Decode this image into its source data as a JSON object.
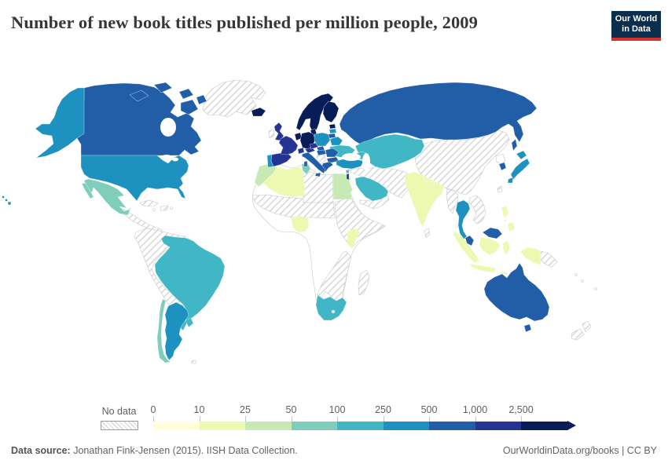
{
  "header": {
    "title": "Number of new book titles published per million people, 2009"
  },
  "logo": {
    "line1": "Our World",
    "line2": "in Data",
    "bg_color": "#0c2e4e",
    "accent_color": "#ce352c"
  },
  "legend": {
    "no_data_label": "No data"
  },
  "footer": {
    "source_label": "Data source:",
    "source_text": " Jonathan Fink-Jensen (2015). IISH Data Collection.",
    "credit_text": "OurWorldinData.org/books | CC BY"
  },
  "chart_data": {
    "type": "heatmap",
    "subtype": "choropleth-world-map",
    "title": "Number of new book titles published per million people, 2009",
    "legend_ticks": [
      "0",
      "10",
      "25",
      "50",
      "100",
      "250",
      "500",
      "1,000",
      "2,500"
    ],
    "bins": [
      {
        "range": "0-10",
        "color": "#ffffd9"
      },
      {
        "range": "10-25",
        "color": "#edf8b1"
      },
      {
        "range": "25-50",
        "color": "#c7e9b4"
      },
      {
        "range": "50-100",
        "color": "#7fcdbb"
      },
      {
        "range": "100-250",
        "color": "#41b6c4"
      },
      {
        "range": "250-500",
        "color": "#1d91c0"
      },
      {
        "range": "500-1,000",
        "color": "#225ea8"
      },
      {
        "range": "1,000-2,500",
        "color": "#253494"
      },
      {
        "range": "2,500+",
        "color": "#081d58"
      }
    ],
    "no_data_style": "hatched",
    "regions": {
      "iceland": "2,500+",
      "scandinavia": "2,500+",
      "finland": "2,500+",
      "denmark": "2,500+",
      "germany": "2,500+",
      "benelux": "2,500+",
      "estonia": "2,500+",
      "uk": "1,000-2,500",
      "spain": "1,000-2,500",
      "france": "1,000-2,500",
      "switzerland": "1,000-2,500",
      "austria": "1,000-2,500",
      "czechia": "1,000-2,500",
      "israel": "1,000-2,500",
      "canada": "500-1,000",
      "russia": "500-1,000",
      "australia": "500-1,000",
      "italy": "500-1,000",
      "greece": "500-1,000",
      "bulgaria": "500-1,000",
      "romania": "500-1,000",
      "hungary": "500-1,000",
      "slovakia": "500-1,000",
      "lithuania": "500-1,000",
      "south-korea": "500-1,000",
      "malaysia": "500-1,000",
      "usa": "250-500",
      "alaska": "250-500",
      "hawaii": "250-500",
      "japan": "250-500",
      "argentina": "250-500",
      "thailand": "250-500",
      "poland": "250-500",
      "belarus": "250-500",
      "latvia": "250-500",
      "portugal": "250-500",
      "turkey": "250-500",
      "brazil": "100-250",
      "uruguay": "100-250",
      "ukraine": "100-250",
      "central-asia": "100-250",
      "caucasus": "100-250",
      "saudi-gulf": "100-250",
      "south-africa": "100-250",
      "lebanon": "100-250",
      "mexico": "50-100",
      "chile": "50-100",
      "tunisia": "50-100",
      "morocco": "25-50",
      "egypt": "25-50",
      "algeria": "10-25",
      "india": "10-25",
      "nepal": "10-25",
      "nigeria": "10-25",
      "kenya": "10-25",
      "indonesia": "10-25",
      "philippines": "10-25",
      "west-papua": "10-25",
      "greenland": "no-data",
      "ireland": "no-data",
      "balkans": "no-data",
      "central-america": "no-data",
      "cuba": "no-data",
      "caribbean": "no-data",
      "south-america-nodata": "no-data",
      "sahel": "no-data",
      "libya": "no-data",
      "sudan-horn": "no-data",
      "southeast-africa": "no-data",
      "madagascar": "no-data",
      "middle-east": "no-data",
      "yemen-oman": "no-data",
      "sri-lanka": "no-data",
      "china-mongolia": "no-data",
      "myanmar": "no-data",
      "indochina": "no-data",
      "papua-new-guinea": "no-data",
      "new-zealand": "no-data",
      "taiwan": "no-data",
      "falkland-islands": "no-data",
      "africa-base": "unshaded",
      "north-korea": "unshaded",
      "pacific-islands": "unshaded"
    }
  }
}
